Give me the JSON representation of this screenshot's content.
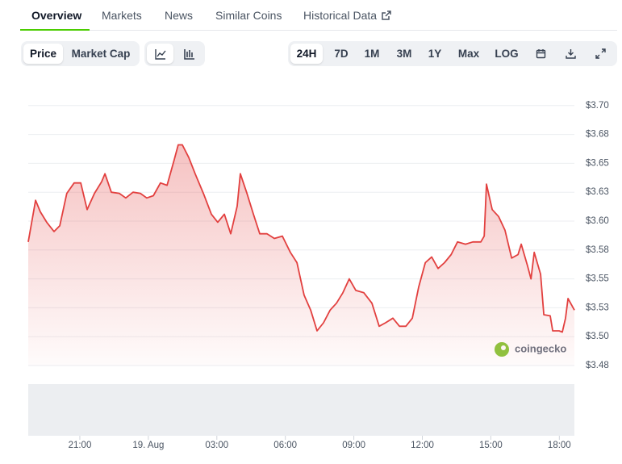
{
  "tabs": [
    "Overview",
    "Markets",
    "News",
    "Similar Coins",
    "Historical Data"
  ],
  "view_toggle": [
    "Price",
    "Market Cap"
  ],
  "ranges": [
    "24H",
    "7D",
    "1M",
    "3M",
    "1Y",
    "Max",
    "LOG"
  ],
  "watermark": "coingecko",
  "chart_data": {
    "type": "area",
    "color": "#e2403f",
    "x": [
      18.74,
      19.06,
      19.27,
      19.55,
      19.87,
      20.12,
      20.43,
      20.75,
      21.04,
      21.32,
      21.64,
      21.95,
      22.1,
      22.38,
      22.73,
      23.01,
      23.33,
      23.65,
      23.93,
      24.22,
      24.53,
      24.82,
      25.13,
      25.31,
      25.49,
      25.77,
      26.05,
      26.41,
      26.76,
      27.04,
      27.33,
      27.61,
      27.89,
      28.03,
      28.32,
      28.6,
      28.88,
      29.2,
      29.52,
      29.87,
      30.22,
      30.51,
      30.82,
      31.11,
      31.39,
      31.67,
      31.96,
      32.24,
      32.52,
      32.8,
      33.09,
      33.44,
      33.79,
      34.11,
      34.39,
      34.71,
      35.0,
      35.28,
      35.56,
      35.84,
      36.13,
      36.41,
      36.69,
      36.97,
      37.26,
      37.54,
      37.89,
      38.21,
      38.56,
      38.71,
      38.81,
      39.06,
      39.34,
      39.62,
      39.91,
      40.19,
      40.33,
      40.61,
      40.76,
      40.9,
      41.18,
      41.32,
      41.6,
      41.71,
      41.99,
      42.13,
      42.27,
      42.38,
      42.66
    ],
    "values": [
      3.582,
      3.618,
      3.608,
      3.599,
      3.591,
      3.596,
      3.624,
      3.633,
      3.633,
      3.61,
      3.624,
      3.634,
      3.641,
      3.625,
      3.624,
      3.62,
      3.625,
      3.624,
      3.62,
      3.622,
      3.633,
      3.631,
      3.653,
      3.666,
      3.666,
      3.655,
      3.641,
      3.624,
      3.606,
      3.599,
      3.606,
      3.589,
      3.613,
      3.641,
      3.624,
      3.606,
      3.589,
      3.589,
      3.585,
      3.587,
      3.573,
      3.564,
      3.536,
      3.523,
      3.505,
      3.512,
      3.523,
      3.529,
      3.538,
      3.55,
      3.54,
      3.538,
      3.529,
      3.509,
      3.512,
      3.516,
      3.509,
      3.509,
      3.516,
      3.543,
      3.564,
      3.569,
      3.559,
      3.564,
      3.571,
      3.582,
      3.58,
      3.582,
      3.582,
      3.587,
      3.632,
      3.61,
      3.604,
      3.592,
      3.568,
      3.571,
      3.58,
      3.561,
      3.55,
      3.573,
      3.554,
      3.519,
      3.518,
      3.505,
      3.505,
      3.504,
      3.516,
      3.533,
      3.523
    ],
    "xlim": [
      18.74,
      42.66
    ],
    "xticks": [
      {
        "value": 21,
        "label": "21:00"
      },
      {
        "value": 24,
        "label": "19. Aug"
      },
      {
        "value": 27,
        "label": "03:00"
      },
      {
        "value": 30,
        "label": "06:00"
      },
      {
        "value": 33,
        "label": "09:00"
      },
      {
        "value": 36,
        "label": "12:00"
      },
      {
        "value": 39,
        "label": "15:00"
      },
      {
        "value": 42,
        "label": "18:00"
      }
    ],
    "ylim": [
      3.475,
      3.715
    ],
    "yticks": [
      {
        "value": 3.475,
        "label": "$3.48"
      },
      {
        "value": 3.5,
        "label": "$3.50"
      },
      {
        "value": 3.525,
        "label": "$3.53"
      },
      {
        "value": 3.55,
        "label": "$3.55"
      },
      {
        "value": 3.575,
        "label": "$3.58"
      },
      {
        "value": 3.6,
        "label": "$3.60"
      },
      {
        "value": 3.625,
        "label": "$3.63"
      },
      {
        "value": 3.65,
        "label": "$3.65"
      },
      {
        "value": 3.675,
        "label": "$3.68"
      },
      {
        "value": 3.7,
        "label": "$3.70"
      }
    ],
    "grid": true
  }
}
